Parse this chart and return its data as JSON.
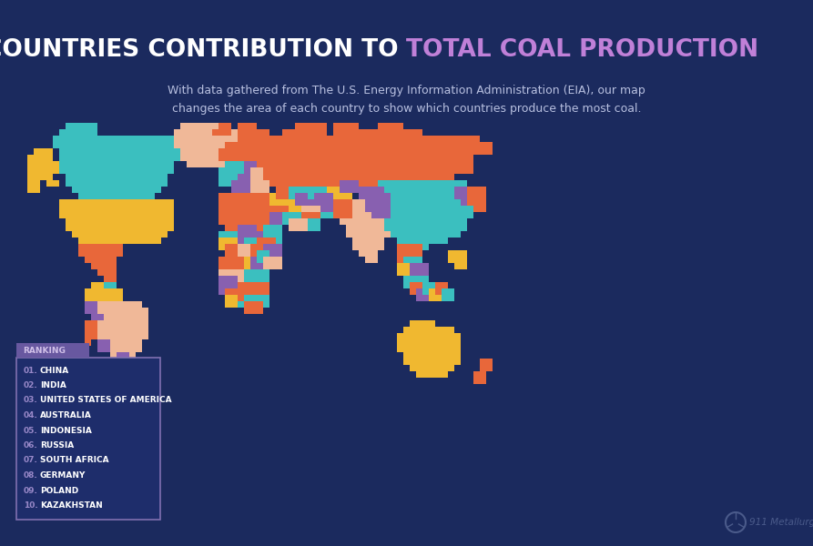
{
  "background_color": "#1b2a5e",
  "title_white": "COUNTRIES CONTRIBUTION TO ",
  "title_purple": "TOTAL COAL PRODUCTION",
  "subtitle": "With data gathered from The U.S. Energy Information Administration (EIA), our map\nchanges the area of each country to show which countries produce the most coal.",
  "title_fontsize": 19,
  "subtitle_fontsize": 9,
  "title_white_color": "#ffffff",
  "title_purple_color": "#c080d8",
  "subtitle_color": "#b8c0e0",
  "legend_bg": "#1e2d6b",
  "legend_border": "#8070b0",
  "legend_title_color": "#d0c0e8",
  "legend_title_bg": "#6858a0",
  "ranking_items": [
    "01. CHINA",
    "02. INDIA",
    "03. UNITED STATES OF AMERICA",
    "04. AUSTRALIA",
    "05. INDONESIA",
    "06. RUSSIA",
    "07. SOUTH AFRICA",
    "08. GERMANY",
    "09. POLAND",
    "10. KAZAKHSTAN"
  ],
  "ranking_number_color": "#9888c8",
  "ranking_text_color": "#ffffff",
  "watermark_color": "#4a5a8a",
  "teal": "#3bbfbf",
  "orange": "#e8673a",
  "yellow": "#f0b830",
  "salmon": "#f0b898",
  "purple": "#8860b0",
  "lt_purple": "#9870c0",
  "dk_orange": "#d05020",
  "brown_orange": "#e08030",
  "pink_salmon": "#f8a888",
  "lt_teal": "#40d0c0",
  "navy": "#1b2a5e"
}
